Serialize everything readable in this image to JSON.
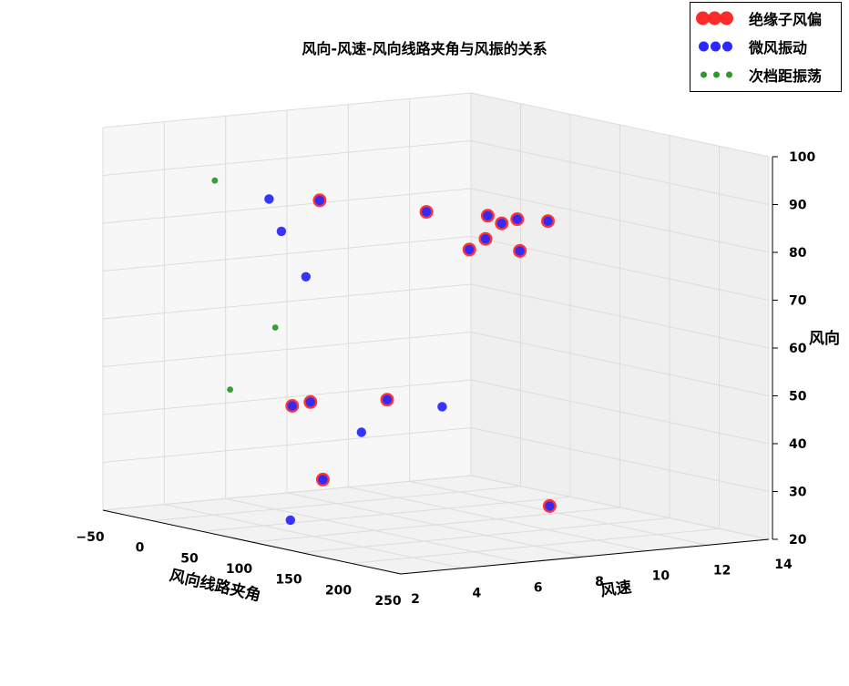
{
  "title": "风向-风速-风向线路夹角与风振的关系",
  "legend": [
    {
      "key": "insulator",
      "label": "绝缘子风偏",
      "color": "#ff2a2a",
      "size": "large"
    },
    {
      "key": "aeolian",
      "label": "微风振动",
      "color": "#2a2aff",
      "size": "medium"
    },
    {
      "key": "subspan",
      "label": "次档距振荡",
      "color": "#2a9a2a",
      "size": "small"
    }
  ],
  "axes": {
    "xlabel": "风向线路夹角",
    "ylabel": "风速",
    "zlabel": "风向",
    "x_ticks": [
      "−50",
      "0",
      "50",
      "100",
      "150",
      "200",
      "250"
    ],
    "y_ticks": [
      "2",
      "4",
      "6",
      "8",
      "10",
      "12",
      "14"
    ],
    "z_ticks": [
      "20",
      "30",
      "40",
      "50",
      "60",
      "70",
      "80",
      "90",
      "100"
    ]
  },
  "chart_data": {
    "type": "scatter",
    "title": "风向-风速-风向线路夹角与风振的关系",
    "xlabel": "风向线路夹角",
    "ylabel": "风速",
    "zlabel": "风向",
    "xlim": [
      -50,
      250
    ],
    "ylim": [
      2,
      14
    ],
    "zlim": [
      20,
      100
    ],
    "grid": true,
    "legend_position": "top-right",
    "series": [
      {
        "name": "绝缘子风偏",
        "color": "#ff2a2a",
        "points": [
          [
            -20,
            8.2,
            24
          ],
          [
            -20,
            7.2,
            40
          ],
          [
            20,
            6.8,
            85
          ],
          [
            20,
            6.5,
            43
          ],
          [
            20,
            9.0,
            42
          ],
          [
            75,
            8.5,
            84
          ],
          [
            75,
            10.5,
            82
          ],
          [
            80,
            11.3,
            81
          ],
          [
            80,
            12.3,
            80
          ],
          [
            120,
            9.5,
            83
          ],
          [
            150,
            8.0,
            82
          ],
          [
            180,
            6.5,
            82
          ],
          [
            200,
            7.5,
            82
          ],
          [
            230,
            7.5,
            30
          ]
        ]
      },
      {
        "name": "微风振动",
        "color": "#2a2aff",
        "points": [
          [
            -20,
            8.2,
            24
          ],
          [
            -20,
            7.2,
            40
          ],
          [
            0,
            5.8,
            85
          ],
          [
            0,
            6.2,
            78
          ],
          [
            0,
            7.0,
            68
          ],
          [
            20,
            6.8,
            85
          ],
          [
            20,
            6.5,
            43
          ],
          [
            20,
            9.0,
            42
          ],
          [
            25,
            8.0,
            36
          ],
          [
            40,
            5.2,
            20
          ],
          [
            75,
            8.5,
            84
          ],
          [
            75,
            10.5,
            82
          ],
          [
            80,
            11.3,
            81
          ],
          [
            80,
            12.3,
            80
          ],
          [
            120,
            9.5,
            83
          ],
          [
            150,
            8.0,
            82
          ],
          [
            180,
            6.5,
            82
          ],
          [
            200,
            7.5,
            82
          ],
          [
            230,
            7.5,
            30
          ],
          [
            60,
            9.5,
            42
          ]
        ]
      },
      {
        "name": "次档距振荡",
        "color": "#2a9a2a",
        "points": [
          [
            -30,
            5.0,
            88
          ],
          [
            -30,
            5.5,
            44
          ],
          [
            0,
            6.0,
            58
          ]
        ]
      }
    ]
  }
}
